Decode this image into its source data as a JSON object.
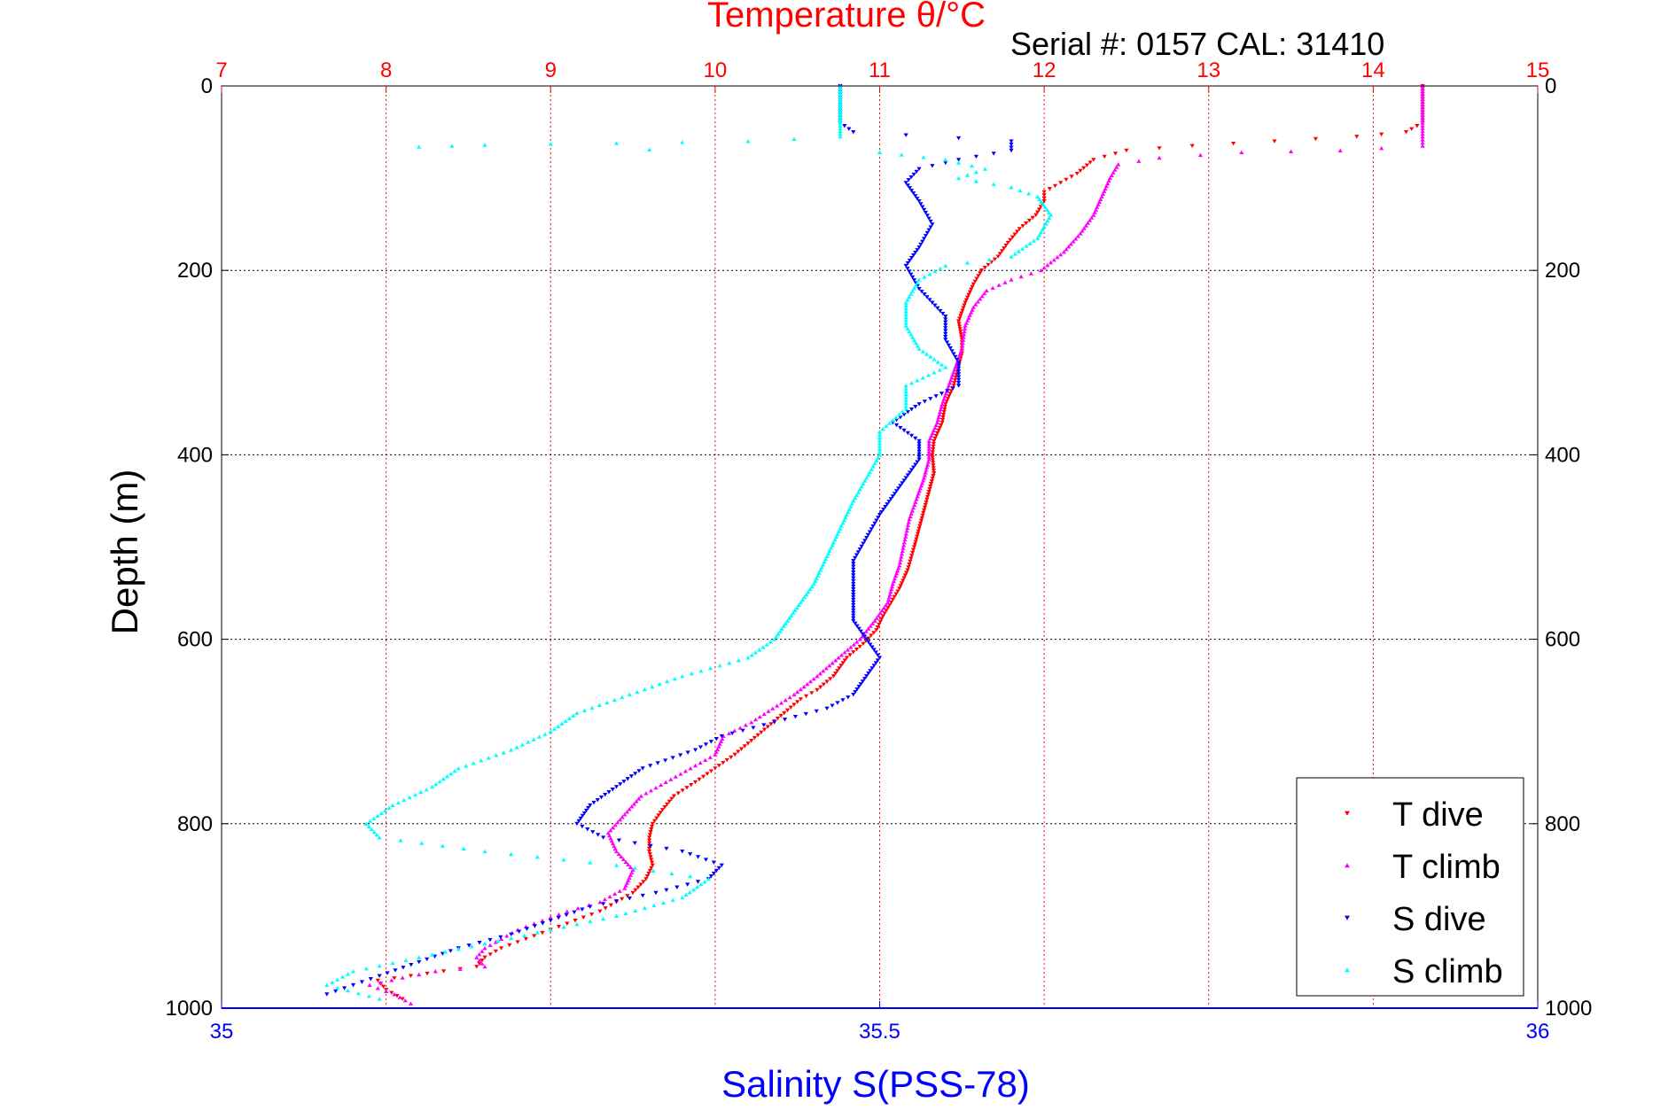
{
  "chart_data": {
    "type": "scatter",
    "title_top": "Temperature θ/°C",
    "subtitle": "Serial #: 0157  CAL: 31410",
    "ylabel": "Depth (m)",
    "xlabel_bottom": "Salinity S(PSS-78)",
    "top_axis": {
      "range": [
        7,
        15
      ],
      "ticks": [
        7,
        8,
        9,
        10,
        11,
        12,
        13,
        14,
        15
      ],
      "color": "#ff0000"
    },
    "bottom_axis": {
      "range": [
        35,
        36
      ],
      "ticks": [
        "35",
        "35.5",
        "36"
      ],
      "tick_values": [
        35,
        35.5,
        36
      ],
      "color": "#0000ff"
    },
    "y_axis": {
      "range": [
        0,
        1000
      ],
      "reversed": true,
      "ticks": [
        0,
        200,
        400,
        600,
        800,
        1000
      ]
    },
    "grid": true,
    "legend": {
      "position": "bottom-right"
    },
    "series": [
      {
        "name": "T dive",
        "axis": "top",
        "color": "#ff0000",
        "marker": "triangle-down",
        "points": [
          [
            14.3,
            0
          ],
          [
            14.3,
            20
          ],
          [
            14.3,
            40
          ],
          [
            14.2,
            50
          ],
          [
            13.9,
            55
          ],
          [
            13.4,
            60
          ],
          [
            12.9,
            65
          ],
          [
            12.5,
            70
          ],
          [
            12.3,
            80
          ],
          [
            12.2,
            95
          ],
          [
            12.1,
            105
          ],
          [
            12.0,
            115
          ],
          [
            12.0,
            125
          ],
          [
            11.95,
            140
          ],
          [
            11.85,
            155
          ],
          [
            11.78,
            170
          ],
          [
            11.72,
            185
          ],
          [
            11.62,
            200
          ],
          [
            11.57,
            215
          ],
          [
            11.52,
            235
          ],
          [
            11.48,
            255
          ],
          [
            11.5,
            275
          ],
          [
            11.5,
            290
          ],
          [
            11.47,
            310
          ],
          [
            11.45,
            325
          ],
          [
            11.4,
            345
          ],
          [
            11.38,
            365
          ],
          [
            11.33,
            385
          ],
          [
            11.32,
            400
          ],
          [
            11.33,
            420
          ],
          [
            11.3,
            440
          ],
          [
            11.27,
            460
          ],
          [
            11.24,
            480
          ],
          [
            11.21,
            500
          ],
          [
            11.17,
            525
          ],
          [
            11.12,
            545
          ],
          [
            11.07,
            560
          ],
          [
            11.02,
            575
          ],
          [
            10.98,
            590
          ],
          [
            10.9,
            605
          ],
          [
            10.8,
            620
          ],
          [
            10.72,
            640
          ],
          [
            10.62,
            655
          ],
          [
            10.52,
            665
          ],
          [
            10.42,
            680
          ],
          [
            10.32,
            695
          ],
          [
            10.22,
            710
          ],
          [
            10.12,
            725
          ],
          [
            10.0,
            740
          ],
          [
            9.88,
            755
          ],
          [
            9.75,
            770
          ],
          [
            9.68,
            785
          ],
          [
            9.62,
            800
          ],
          [
            9.6,
            815
          ],
          [
            9.6,
            830
          ],
          [
            9.62,
            845
          ],
          [
            9.58,
            860
          ],
          [
            9.5,
            875
          ],
          [
            9.4,
            885
          ],
          [
            9.3,
            895
          ],
          [
            9.15,
            905
          ],
          [
            9.0,
            915
          ],
          [
            8.85,
            925
          ],
          [
            8.7,
            935
          ],
          [
            8.6,
            945
          ],
          [
            8.55,
            955
          ],
          [
            8.35,
            960
          ],
          [
            8.15,
            965
          ],
          [
            7.95,
            970
          ],
          [
            8.0,
            980
          ],
          [
            8.1,
            990
          ]
        ]
      },
      {
        "name": "T climb",
        "axis": "top",
        "color": "#ff00ff",
        "marker": "triangle-up",
        "points": [
          [
            14.3,
            0
          ],
          [
            14.3,
            20
          ],
          [
            14.3,
            40
          ],
          [
            14.3,
            55
          ],
          [
            14.3,
            65
          ],
          [
            13.8,
            70
          ],
          [
            13.2,
            72
          ],
          [
            12.7,
            78
          ],
          [
            12.45,
            85
          ],
          [
            12.4,
            100
          ],
          [
            12.35,
            120
          ],
          [
            12.3,
            140
          ],
          [
            12.22,
            160
          ],
          [
            12.12,
            180
          ],
          [
            11.98,
            200
          ],
          [
            11.8,
            210
          ],
          [
            11.65,
            222
          ],
          [
            11.57,
            240
          ],
          [
            11.52,
            260
          ],
          [
            11.5,
            285
          ],
          [
            11.46,
            305
          ],
          [
            11.42,
            325
          ],
          [
            11.38,
            345
          ],
          [
            11.35,
            365
          ],
          [
            11.3,
            385
          ],
          [
            11.3,
            405
          ],
          [
            11.27,
            425
          ],
          [
            11.23,
            445
          ],
          [
            11.18,
            470
          ],
          [
            11.15,
            495
          ],
          [
            11.12,
            520
          ],
          [
            11.08,
            540
          ],
          [
            11.05,
            560
          ],
          [
            10.97,
            580
          ],
          [
            10.88,
            600
          ],
          [
            10.75,
            620
          ],
          [
            10.62,
            640
          ],
          [
            10.48,
            660
          ],
          [
            10.35,
            675
          ],
          [
            10.22,
            690
          ],
          [
            10.05,
            705
          ],
          [
            10.0,
            725
          ],
          [
            9.85,
            740
          ],
          [
            9.7,
            755
          ],
          [
            9.55,
            770
          ],
          [
            9.45,
            790
          ],
          [
            9.35,
            810
          ],
          [
            9.4,
            830
          ],
          [
            9.5,
            850
          ],
          [
            9.45,
            870
          ],
          [
            9.3,
            885
          ],
          [
            9.1,
            895
          ],
          [
            8.95,
            905
          ],
          [
            8.8,
            915
          ],
          [
            8.7,
            925
          ],
          [
            8.6,
            935
          ],
          [
            8.55,
            945
          ],
          [
            8.6,
            955
          ],
          [
            8.3,
            960
          ],
          [
            8.1,
            967
          ],
          [
            7.9,
            975
          ],
          [
            8.05,
            985
          ],
          [
            8.15,
            995
          ]
        ]
      },
      {
        "name": "S dive",
        "axis": "bottom",
        "color": "#0000ff",
        "marker": "triangle-down",
        "points": [
          [
            35.47,
            0
          ],
          [
            35.47,
            20
          ],
          [
            35.47,
            40
          ],
          [
            35.48,
            50
          ],
          [
            35.6,
            60
          ],
          [
            35.6,
            70
          ],
          [
            35.56,
            80
          ],
          [
            35.53,
            90
          ],
          [
            35.52,
            105
          ],
          [
            35.53,
            125
          ],
          [
            35.54,
            150
          ],
          [
            35.53,
            175
          ],
          [
            35.52,
            195
          ],
          [
            35.53,
            220
          ],
          [
            35.55,
            250
          ],
          [
            35.55,
            275
          ],
          [
            35.56,
            300
          ],
          [
            35.56,
            325
          ],
          [
            35.53,
            345
          ],
          [
            35.51,
            365
          ],
          [
            35.53,
            385
          ],
          [
            35.53,
            405
          ],
          [
            35.52,
            425
          ],
          [
            35.51,
            445
          ],
          [
            35.5,
            465
          ],
          [
            35.49,
            490
          ],
          [
            35.48,
            515
          ],
          [
            35.48,
            540
          ],
          [
            35.48,
            560
          ],
          [
            35.48,
            580
          ],
          [
            35.49,
            600
          ],
          [
            35.5,
            620
          ],
          [
            35.49,
            640
          ],
          [
            35.48,
            660
          ],
          [
            35.46,
            675
          ],
          [
            35.42,
            690
          ],
          [
            35.38,
            705
          ],
          [
            35.36,
            720
          ],
          [
            35.32,
            740
          ],
          [
            35.3,
            760
          ],
          [
            35.28,
            780
          ],
          [
            35.27,
            800
          ],
          [
            35.29,
            815
          ],
          [
            35.35,
            830
          ],
          [
            35.38,
            845
          ],
          [
            35.37,
            860
          ],
          [
            35.33,
            875
          ],
          [
            35.28,
            890
          ],
          [
            35.25,
            905
          ],
          [
            35.22,
            920
          ],
          [
            35.18,
            935
          ],
          [
            35.15,
            950
          ],
          [
            35.12,
            965
          ],
          [
            35.1,
            975
          ],
          [
            35.08,
            985
          ]
        ]
      },
      {
        "name": "S climb",
        "axis": "bottom",
        "color": "#00ffff",
        "marker": "triangle-up",
        "points": [
          [
            35.47,
            0
          ],
          [
            35.47,
            20
          ],
          [
            35.47,
            40
          ],
          [
            35.47,
            55
          ],
          [
            35.4,
            60
          ],
          [
            35.3,
            62
          ],
          [
            35.2,
            64
          ],
          [
            35.15,
            66
          ],
          [
            35.5,
            72
          ],
          [
            35.55,
            80
          ],
          [
            35.58,
            90
          ],
          [
            35.56,
            100
          ],
          [
            35.6,
            110
          ],
          [
            35.62,
            120
          ],
          [
            35.63,
            140
          ],
          [
            35.62,
            165
          ],
          [
            35.6,
            185
          ],
          [
            35.55,
            195
          ],
          [
            35.53,
            210
          ],
          [
            35.52,
            235
          ],
          [
            35.52,
            260
          ],
          [
            35.53,
            285
          ],
          [
            35.55,
            305
          ],
          [
            35.52,
            325
          ],
          [
            35.52,
            350
          ],
          [
            35.5,
            375
          ],
          [
            35.5,
            400
          ],
          [
            35.49,
            425
          ],
          [
            35.48,
            450
          ],
          [
            35.47,
            480
          ],
          [
            35.46,
            510
          ],
          [
            35.45,
            540
          ],
          [
            35.44,
            560
          ],
          [
            35.43,
            580
          ],
          [
            35.42,
            600
          ],
          [
            35.4,
            620
          ],
          [
            35.35,
            640
          ],
          [
            35.31,
            660
          ],
          [
            35.27,
            680
          ],
          [
            35.25,
            700
          ],
          [
            35.22,
            720
          ],
          [
            35.18,
            740
          ],
          [
            35.16,
            760
          ],
          [
            35.13,
            780
          ],
          [
            35.11,
            800
          ],
          [
            35.12,
            815
          ],
          [
            35.2,
            830
          ],
          [
            35.3,
            845
          ],
          [
            35.37,
            860
          ],
          [
            35.35,
            880
          ],
          [
            35.3,
            900
          ],
          [
            35.25,
            915
          ],
          [
            35.2,
            930
          ],
          [
            35.15,
            945
          ],
          [
            35.1,
            960
          ],
          [
            35.08,
            975
          ],
          [
            35.12,
            990
          ]
        ]
      }
    ]
  }
}
